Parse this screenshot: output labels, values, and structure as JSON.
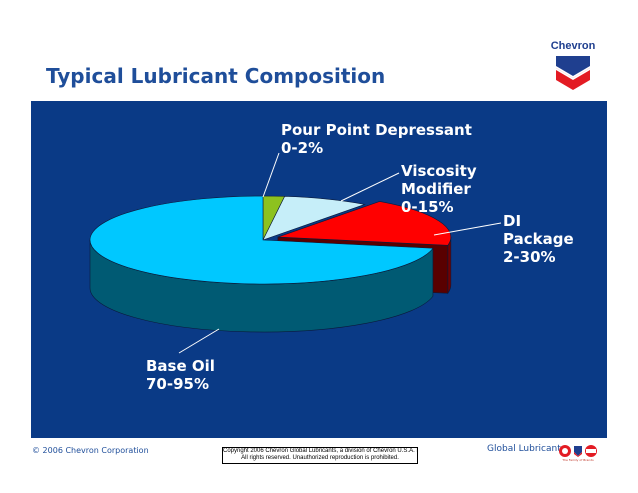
{
  "slide": {
    "title": "Typical Lubricant Composition",
    "logo_text": "Chevron",
    "footer_left": "© 2006 Chevron Corporation",
    "copyright_line1": "Copyright 2006 Chevron Global Lubricants, a division of Chevron U.S.A. Inc.",
    "copyright_line2": "All rights reserved.  Unauthorized reproduction is prohibited.",
    "footer_right": "Global Lubricants",
    "brand_tagline": "The Family of Brands",
    "panel_color": "#0a3a86",
    "title_color": "#1f4e9a"
  },
  "chart_data": {
    "type": "pie",
    "style": "3d-exploded-slice",
    "title": "",
    "slices": [
      {
        "name": "Pour Point Depressant",
        "range": "0-2%",
        "value": 2,
        "color": "#8dc21f",
        "label_lines": [
          "Pour Point Depressant",
          "0-2%"
        ]
      },
      {
        "name": "Viscosity Modifier",
        "range": "0-15%",
        "value": 8,
        "color": "#c6eef9",
        "label_lines": [
          "Viscosity",
          "Modifier",
          "0-15%"
        ]
      },
      {
        "name": "DI Package",
        "range": "2-30%",
        "value": 18,
        "color": "#ff0000",
        "label_lines": [
          "DI",
          "Package",
          "2-30%"
        ]
      },
      {
        "name": "Base Oil",
        "range": "70-95%",
        "value": 72,
        "color": "#00c8ff",
        "label_lines": [
          "Base Oil",
          "70-95%"
        ]
      }
    ]
  }
}
